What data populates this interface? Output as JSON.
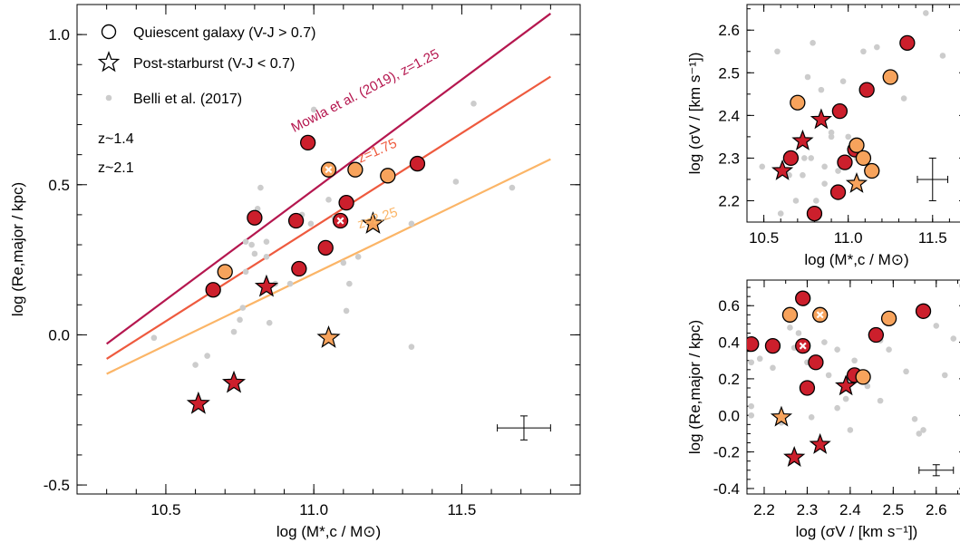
{
  "colors": {
    "red": "#cc1f2c",
    "orange": "#f7a35c",
    "grey": "#cccccc",
    "mowla": "#b5174f",
    "z175": "#ee5a3e",
    "z225": "#fbb567"
  },
  "chart_data": [
    {
      "type": "scatter",
      "id": "main",
      "xlabel": "log (M*,c / M⊙)",
      "ylabel": "log (Re,major / kpc)",
      "xlim": [
        10.2,
        11.9
      ],
      "ylim": [
        -0.53,
        1.1
      ],
      "xticks": [
        10.5,
        11.0,
        11.5
      ],
      "xtick_labels": [
        "10.5",
        "11.0",
        "11.5"
      ],
      "yticks": [
        1.0,
        0.5,
        0.0,
        -0.5
      ],
      "ytick_labels": [
        "1.0",
        "0.5",
        "0.0",
        "-0.5"
      ],
      "legend": {
        "position": "top-left",
        "entries": [
          {
            "marker": "circle",
            "label": "Quiescent galaxy (V-J > 0.7)"
          },
          {
            "marker": "star",
            "label": "Post-starburst (V-J < 0.7)"
          },
          {
            "marker": "dot",
            "label": "Belli et al. (2017)"
          }
        ],
        "redshift_labels": [
          {
            "text": "z~1.4",
            "color": "#cc1f2c"
          },
          {
            "text": "z~2.1",
            "color": "#f7a35c"
          }
        ]
      },
      "lines": [
        {
          "name": "Mowla et al. (2019), z=1.25",
          "color": "#b5174f",
          "x": [
            10.3,
            11.8
          ],
          "y": [
            -0.03,
            1.07
          ]
        },
        {
          "name": "z=1.75",
          "color": "#ee5a3e",
          "x": [
            10.3,
            11.8
          ],
          "y": [
            -0.08,
            0.86
          ]
        },
        {
          "name": "z=2.25",
          "color": "#fbb567",
          "x": [
            10.3,
            11.8
          ],
          "y": [
            -0.13,
            0.585
          ]
        }
      ],
      "line_labels": [
        {
          "text": "Mowla et al. (2019), z=1.25",
          "color": "#b5174f",
          "x": 11.18,
          "y": 0.8,
          "angle": -27.5
        },
        {
          "text": "z=1.75",
          "color": "#ee5a3e",
          "x": 11.22,
          "y": 0.6,
          "angle": -23.9
        },
        {
          "text": "z=2.25",
          "color": "#fbb567",
          "x": 11.22,
          "y": 0.375,
          "angle": -18.5
        }
      ],
      "error_bar": {
        "x": 11.71,
        "y": -0.31,
        "xerr": 0.09,
        "yerr": 0.04
      },
      "belli": [
        [
          10.46,
          -0.01
        ],
        [
          10.6,
          -0.1
        ],
        [
          10.64,
          -0.07
        ],
        [
          10.73,
          0.01
        ],
        [
          10.75,
          0.05
        ],
        [
          10.76,
          0.09
        ],
        [
          10.77,
          0.21
        ],
        [
          10.77,
          0.31
        ],
        [
          10.79,
          0.3
        ],
        [
          10.8,
          0.27
        ],
        [
          10.81,
          0.42
        ],
        [
          10.82,
          0.49
        ],
        [
          10.84,
          0.26
        ],
        [
          10.84,
          0.31
        ],
        [
          10.85,
          0.04
        ],
        [
          10.87,
          0.17
        ],
        [
          10.92,
          0.17
        ],
        [
          10.96,
          0.4
        ],
        [
          10.99,
          0.37
        ],
        [
          11.0,
          0.75
        ],
        [
          11.03,
          0.29
        ],
        [
          11.05,
          0.45
        ],
        [
          11.07,
          0.39
        ],
        [
          11.1,
          0.24
        ],
        [
          11.11,
          0.08
        ],
        [
          11.12,
          0.17
        ],
        [
          11.15,
          0.26
        ],
        [
          11.33,
          0.37
        ],
        [
          11.33,
          -0.04
        ],
        [
          11.48,
          0.51
        ],
        [
          11.54,
          0.77
        ],
        [
          11.67,
          0.49
        ]
      ],
      "quiescent_red": [
        [
          10.66,
          0.15
        ],
        [
          10.8,
          0.39
        ],
        [
          10.94,
          0.38
        ],
        [
          10.95,
          0.22
        ],
        [
          10.98,
          0.64
        ],
        [
          11.04,
          0.29
        ],
        [
          11.11,
          0.44
        ],
        [
          11.35,
          0.57
        ]
      ],
      "quiescent_orange": [
        [
          10.7,
          0.21
        ],
        [
          11.14,
          0.55
        ],
        [
          11.25,
          0.53
        ]
      ],
      "quiescent_cross_orange": [
        [
          11.05,
          0.55
        ]
      ],
      "quiescent_cross_red": [
        [
          11.09,
          0.38
        ]
      ],
      "psb_red": [
        [
          10.61,
          -0.23
        ],
        [
          10.73,
          -0.16
        ],
        [
          10.84,
          0.16
        ]
      ],
      "psb_orange": [
        [
          11.05,
          -0.01
        ],
        [
          11.2,
          0.37
        ]
      ]
    },
    {
      "type": "scatter",
      "id": "top-right",
      "xlabel": "log (M*,c / M⊙)",
      "ylabel": "log (σV / [km s⁻¹])",
      "xlim": [
        10.4,
        11.7
      ],
      "ylim": [
        2.15,
        2.66
      ],
      "xticks": [
        10.5,
        11.0,
        11.5
      ],
      "xtick_labels": [
        "10.5",
        "11.0",
        "11.5"
      ],
      "yticks": [
        2.2,
        2.3,
        2.4,
        2.5,
        2.6
      ],
      "ytick_labels": [
        "2.2",
        "2.3",
        "2.4",
        "2.5",
        "2.6"
      ],
      "error_bar": {
        "x": 11.5,
        "y": 2.25,
        "xerr": 0.09,
        "yerr": 0.05
      },
      "belli": [
        [
          10.49,
          2.28
        ],
        [
          10.58,
          2.55
        ],
        [
          10.6,
          2.17
        ],
        [
          10.63,
          2.27
        ],
        [
          10.65,
          2.26
        ],
        [
          10.69,
          2.2
        ],
        [
          10.73,
          2.26
        ],
        [
          10.74,
          2.3
        ],
        [
          10.76,
          2.49
        ],
        [
          10.78,
          2.3
        ],
        [
          10.79,
          2.57
        ],
        [
          10.81,
          2.2
        ],
        [
          10.84,
          2.46
        ],
        [
          10.86,
          2.24
        ],
        [
          10.86,
          2.28
        ],
        [
          10.9,
          2.35
        ],
        [
          10.9,
          2.36
        ],
        [
          10.94,
          2.27
        ],
        [
          10.95,
          2.23
        ],
        [
          10.97,
          2.48
        ],
        [
          11.0,
          2.35
        ],
        [
          11.05,
          2.3
        ],
        [
          11.09,
          2.55
        ],
        [
          11.17,
          2.56
        ],
        [
          11.33,
          2.44
        ],
        [
          11.46,
          2.64
        ],
        [
          11.56,
          2.54
        ],
        [
          11.68,
          2.5
        ]
      ],
      "quiescent_red": [
        [
          10.66,
          2.3
        ],
        [
          10.8,
          2.17
        ],
        [
          10.94,
          2.22
        ],
        [
          10.95,
          2.41
        ],
        [
          10.98,
          2.29
        ],
        [
          11.04,
          2.32
        ],
        [
          11.11,
          2.46
        ],
        [
          11.35,
          2.57
        ]
      ],
      "quiescent_orange": [
        [
          10.7,
          2.43
        ],
        [
          11.05,
          2.33
        ],
        [
          11.09,
          2.3
        ],
        [
          11.14,
          2.27
        ],
        [
          11.25,
          2.49
        ]
      ],
      "quiescent_cross_orange": [],
      "quiescent_cross_red": [],
      "psb_red": [
        [
          10.61,
          2.27
        ],
        [
          10.73,
          2.34
        ],
        [
          10.84,
          2.39
        ]
      ],
      "psb_orange": [
        [
          11.05,
          2.24
        ]
      ]
    },
    {
      "type": "scatter",
      "id": "bottom-right",
      "xlabel": "log (σV / [km s⁻¹])",
      "ylabel": "log (Re,major / kpc)",
      "xlim": [
        2.16,
        2.67
      ],
      "ylim": [
        -0.43,
        0.74
      ],
      "xticks": [
        2.2,
        2.3,
        2.4,
        2.5,
        2.6
      ],
      "xtick_labels": [
        "2.2",
        "2.3",
        "2.4",
        "2.5",
        "2.6"
      ],
      "yticks": [
        -0.4,
        -0.2,
        0.0,
        0.2,
        0.4,
        0.6
      ],
      "ytick_labels": [
        "-0.4",
        "-0.2",
        "0.0",
        "0.2",
        "0.4",
        "0.6"
      ],
      "error_bar": {
        "x": 2.6,
        "y": -0.3,
        "xerr": 0.04,
        "yerr": 0.03
      },
      "belli": [
        [
          2.17,
          0.05
        ],
        [
          2.17,
          0.29
        ],
        [
          2.17,
          0.0
        ],
        [
          2.19,
          0.31
        ],
        [
          2.22,
          0.26
        ],
        [
          2.24,
          -0.04
        ],
        [
          2.26,
          0.48
        ],
        [
          2.27,
          0.37
        ],
        [
          2.28,
          0.45
        ],
        [
          2.3,
          0.29
        ],
        [
          2.31,
          0.17
        ],
        [
          2.31,
          -0.01
        ],
        [
          2.34,
          0.4
        ],
        [
          2.35,
          0.22
        ],
        [
          2.37,
          0.36
        ],
        [
          2.37,
          0.04
        ],
        [
          2.39,
          0.09
        ],
        [
          2.4,
          -0.08
        ],
        [
          2.41,
          0.2
        ],
        [
          2.41,
          0.3
        ],
        [
          2.44,
          0.16
        ],
        [
          2.47,
          0.41
        ],
        [
          2.47,
          0.08
        ],
        [
          2.49,
          0.36
        ],
        [
          2.53,
          0.24
        ],
        [
          2.55,
          -0.02
        ],
        [
          2.56,
          -0.1
        ],
        [
          2.57,
          -0.08
        ],
        [
          2.6,
          0.49
        ],
        [
          2.66,
          0.71
        ],
        [
          2.64,
          0.42
        ],
        [
          2.62,
          0.22
        ]
      ],
      "quiescent_red": [
        [
          2.17,
          0.39
        ],
        [
          2.22,
          0.38
        ],
        [
          2.29,
          0.64
        ],
        [
          2.3,
          0.15
        ],
        [
          2.32,
          0.29
        ],
        [
          2.41,
          0.22
        ],
        [
          2.46,
          0.44
        ],
        [
          2.57,
          0.57
        ]
      ],
      "quiescent_orange": [
        [
          2.26,
          0.55
        ],
        [
          2.43,
          0.21
        ],
        [
          2.49,
          0.53
        ]
      ],
      "quiescent_cross_orange": [
        [
          2.33,
          0.55
        ]
      ],
      "quiescent_cross_red": [
        [
          2.29,
          0.38
        ]
      ],
      "psb_red": [
        [
          2.27,
          -0.23
        ],
        [
          2.33,
          -0.16
        ],
        [
          2.39,
          0.16
        ]
      ],
      "psb_orange": [
        [
          2.24,
          -0.01
        ]
      ]
    }
  ]
}
